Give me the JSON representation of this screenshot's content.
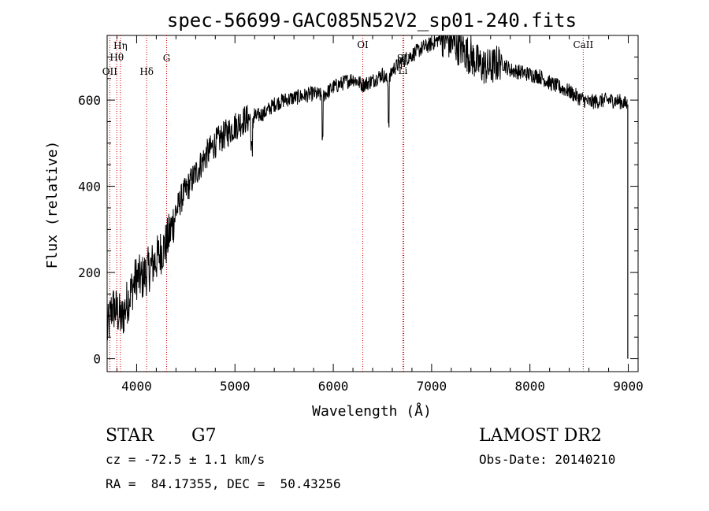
{
  "chart_data": {
    "type": "line",
    "title": "spec-56699-GAC085N52V2_sp01-240.fits",
    "xlabel": "Wavelength (Å)",
    "ylabel": "Flux (relative)",
    "xlim": [
      3700,
      9100
    ],
    "ylim": [
      -30,
      750
    ],
    "x_ticks": [
      4000,
      5000,
      6000,
      7000,
      8000,
      9000
    ],
    "y_ticks": [
      0,
      200,
      400,
      600
    ],
    "grid": false,
    "series": [
      {
        "name": "",
        "x": [
          3700,
          3750,
          3800,
          3850,
          3900,
          3950,
          4000,
          4050,
          4100,
          4150,
          4200,
          4250,
          4300,
          4350,
          4400,
          4450,
          4500,
          4600,
          4700,
          4800,
          4900,
          5000,
          5100,
          5200,
          5300,
          5400,
          5500,
          5600,
          5700,
          5800,
          5890,
          5950,
          6000,
          6100,
          6200,
          6300,
          6400,
          6500,
          6563,
          6600,
          6700,
          6800,
          6900,
          7000,
          7100,
          7200,
          7300,
          7400,
          7500,
          7600,
          7700,
          7800,
          7900,
          8000,
          8100,
          8200,
          8300,
          8400,
          8500,
          8600,
          8700,
          8800,
          8900,
          8990
        ],
        "y": [
          60,
          120,
          110,
          90,
          130,
          160,
          190,
          185,
          200,
          215,
          230,
          250,
          265,
          300,
          340,
          370,
          390,
          430,
          470,
          500,
          520,
          540,
          555,
          560,
          570,
          590,
          600,
          605,
          610,
          615,
          610,
          620,
          630,
          640,
          650,
          635,
          645,
          660,
          640,
          670,
          690,
          705,
          720,
          730,
          745,
          735,
          720,
          700,
          680,
          675,
          690,
          670,
          665,
          660,
          655,
          640,
          630,
          620,
          605,
          595,
          598,
          600,
          598,
          590
        ]
      }
    ],
    "lines": [
      {
        "label": "OII",
        "x": 3727
      },
      {
        "label": "Hη",
        "x": 3835
      },
      {
        "label": "Hθ",
        "x": 3798
      },
      {
        "label": "Hδ",
        "x": 4102
      },
      {
        "label": "G",
        "x": 4305
      },
      {
        "label": "OI",
        "x": 6300
      },
      {
        "label": "SII",
        "x": 6717
      },
      {
        "label": "Li",
        "x": 6708
      },
      {
        "label": "CaII",
        "x": 8542
      }
    ]
  },
  "info": {
    "object_class": "STAR",
    "subclass": "G7",
    "survey": "LAMOST DR2",
    "redshift_text": "cz = -72.5 ± 1.1 km/s",
    "obs_date": "Obs-Date: 20140210",
    "coords": "RA =  84.17355, DEC =  50.43256"
  }
}
